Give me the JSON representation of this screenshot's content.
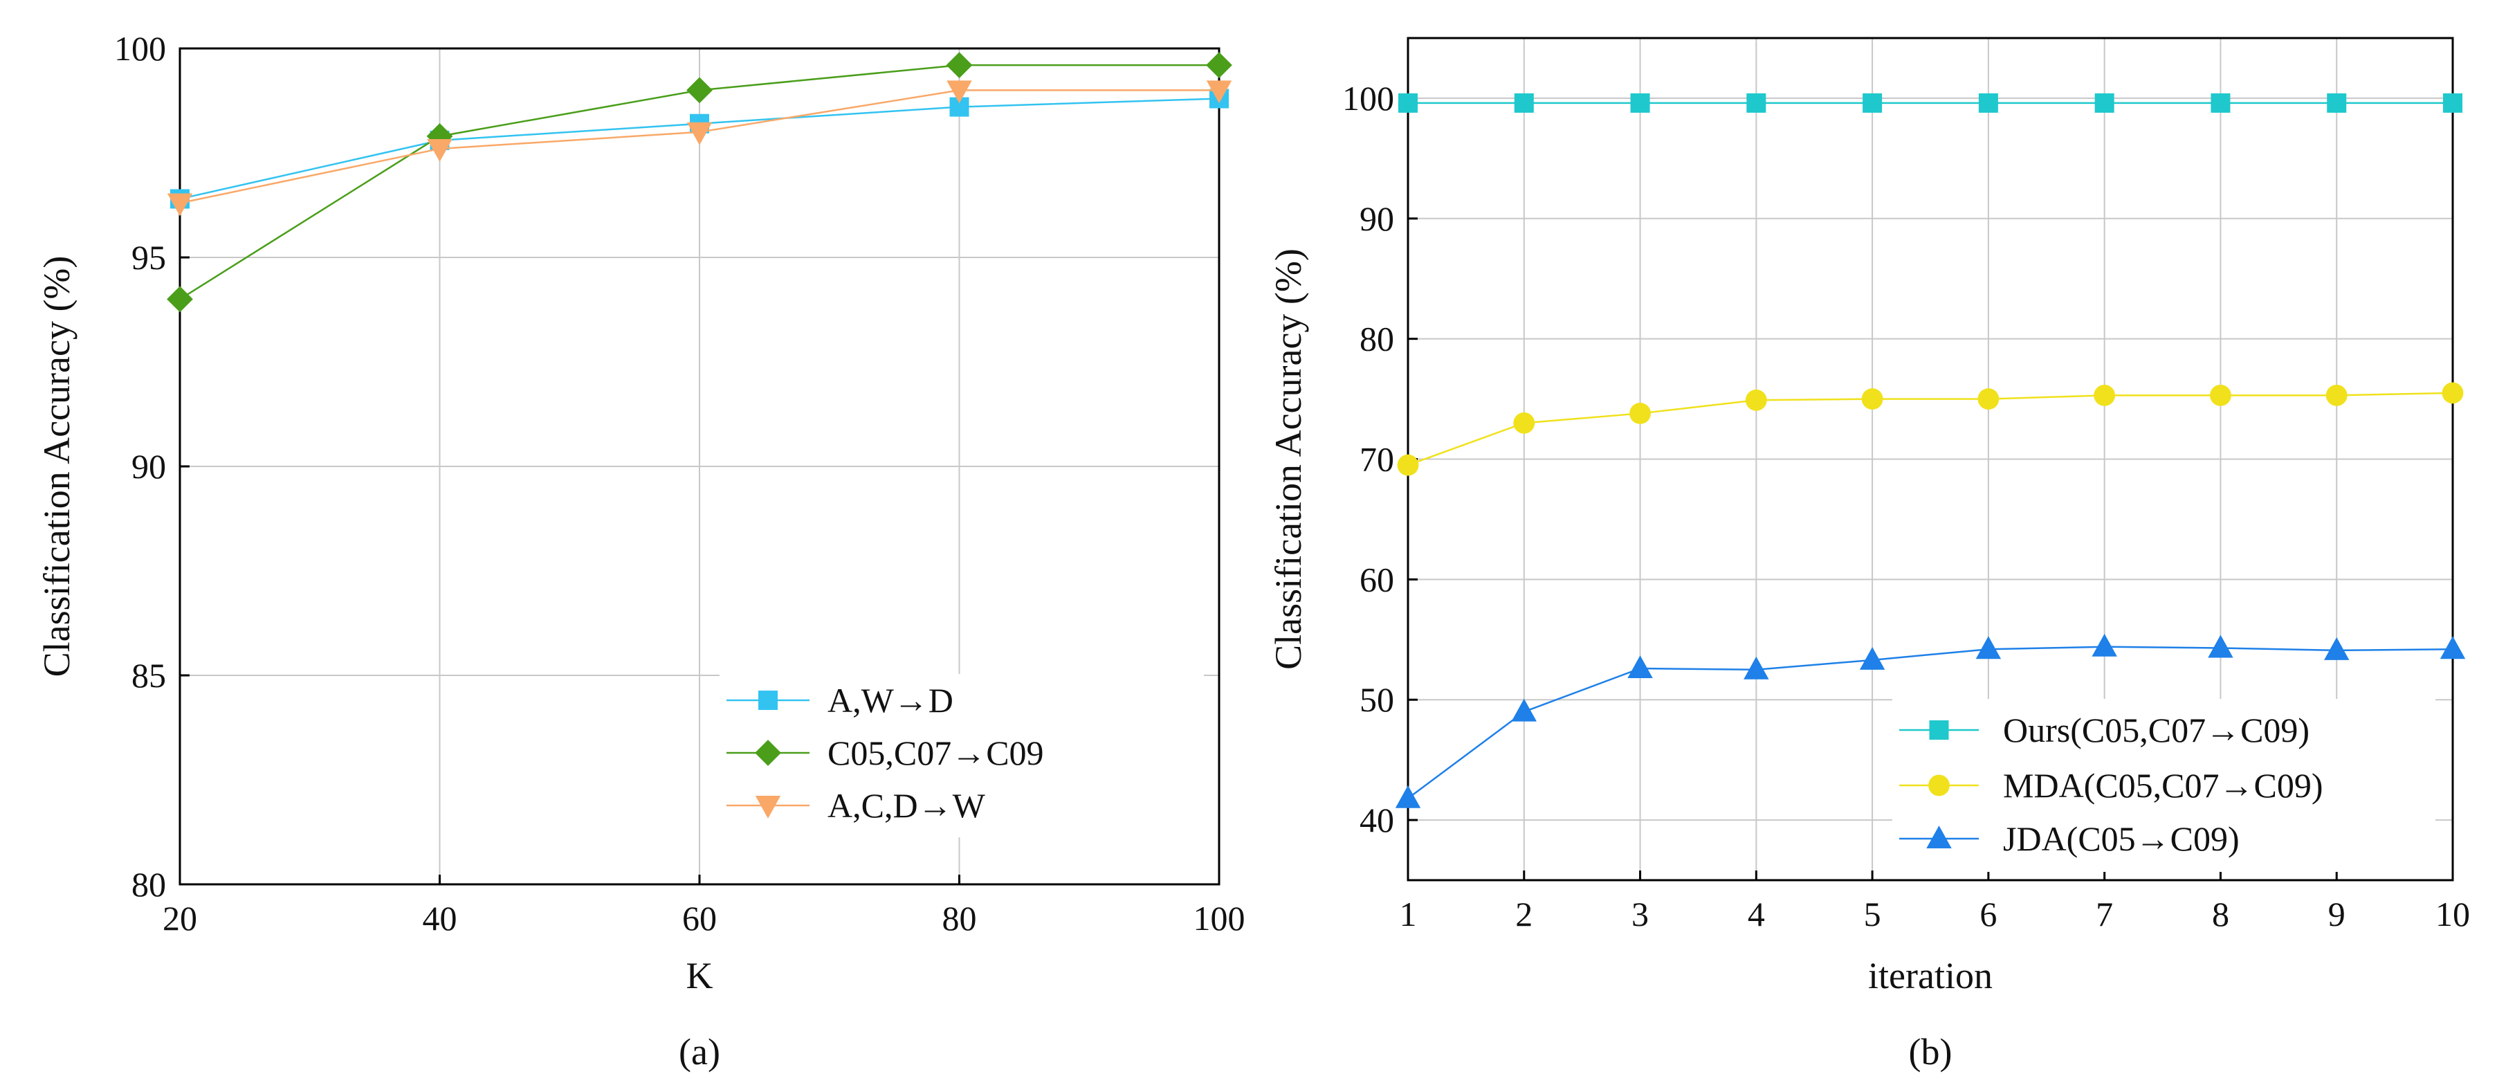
{
  "chart_data": [
    {
      "id": "a",
      "type": "line",
      "caption": "(a)",
      "title": "",
      "xlabel": "K",
      "ylabel": "Classification Accuracy (%)",
      "xlim": [
        20,
        100
      ],
      "ylim": [
        80,
        100
      ],
      "xticks": [
        20,
        40,
        60,
        80,
        100
      ],
      "yticks": [
        80,
        85,
        90,
        95,
        100
      ],
      "grid": true,
      "legend_position": "bottom-right",
      "x": [
        20,
        40,
        60,
        80,
        100
      ],
      "series": [
        {
          "name": "A,W→D",
          "values": [
            96.4,
            97.8,
            98.2,
            98.6,
            98.8
          ],
          "color": "#33c3f0",
          "marker": "square"
        },
        {
          "name": "C05,C07→C09",
          "values": [
            94.0,
            97.9,
            99.0,
            99.6,
            99.6
          ],
          "color": "#4a9e1a",
          "marker": "diamond"
        },
        {
          "name": "A,C,D→W",
          "values": [
            96.3,
            97.6,
            98.0,
            99.0,
            99.0
          ],
          "color": "#f9a868",
          "marker": "triangle-down"
        }
      ]
    },
    {
      "id": "b",
      "type": "line",
      "caption": "(b)",
      "title": "",
      "xlabel": "iteration",
      "ylabel": "Classification Accuracy (%)",
      "xlim": [
        1,
        10
      ],
      "ylim": [
        35,
        105
      ],
      "xticks": [
        1,
        2,
        3,
        4,
        5,
        6,
        7,
        8,
        9,
        10
      ],
      "yticks": [
        40,
        50,
        60,
        70,
        80,
        90,
        100
      ],
      "grid": true,
      "legend_position": "bottom-right",
      "x": [
        1,
        2,
        3,
        4,
        5,
        6,
        7,
        8,
        9,
        10
      ],
      "series": [
        {
          "name": "Ours(C05,C07→C09)",
          "values": [
            99.6,
            99.6,
            99.6,
            99.6,
            99.6,
            99.6,
            99.6,
            99.6,
            99.6,
            99.6
          ],
          "color": "#1fc8cc",
          "marker": "square"
        },
        {
          "name": "MDA(C05,C07→C09)",
          "values": [
            69.5,
            73.0,
            73.8,
            74.9,
            75.0,
            75.0,
            75.3,
            75.3,
            75.3,
            75.5
          ],
          "color": "#f0e11c",
          "marker": "circle"
        },
        {
          "name": "JDA(C05→C09)",
          "values": [
            41.8,
            49.0,
            52.6,
            52.5,
            53.3,
            54.2,
            54.4,
            54.3,
            54.1,
            54.2
          ],
          "color": "#1e80e8",
          "marker": "triangle-up"
        }
      ]
    }
  ]
}
